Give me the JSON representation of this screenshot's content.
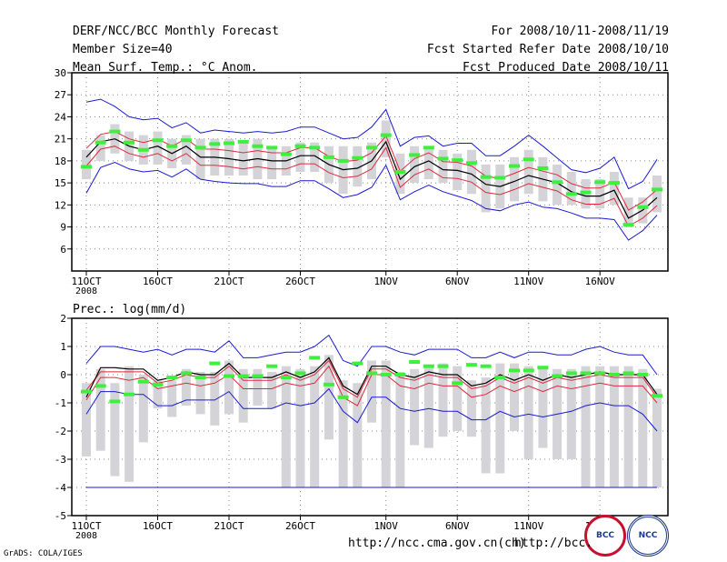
{
  "header": {
    "left": [
      "DERF/NCC/BCC Monthly Forecast",
      "Member Size=40",
      "Mean Surf. Temp.: °C Anom."
    ],
    "right": [
      "For 2008/10/11-2008/11/19",
      "Fcst Started Refer Date 2008/10/10",
      "Fcst Produced Date 2008/10/11"
    ]
  },
  "footer": {
    "grads": "GrADS: COLA/IGES",
    "url1": "http://ncc.cma.gov.cn(ch)",
    "url2": "http://bcc.",
    "logo_bcc": "BCC",
    "logo_ncc": "NCC"
  },
  "colors": {
    "mean": "#000000",
    "inner": "#e0283c",
    "outer": "#1a1ad6",
    "box": "#d4d4d8",
    "median": "#3cf03c",
    "grid": "#888888"
  },
  "chart_data": [
    {
      "type": "line",
      "title": "Mean Surf. Temp.: °C Anom.",
      "ylim": [
        3,
        30
      ],
      "yticks": [
        6,
        9,
        12,
        15,
        18,
        21,
        24,
        27,
        30
      ],
      "xticks": [
        {
          "day": 0,
          "label": "11OCT",
          "sub": "2008"
        },
        {
          "day": 5,
          "label": "16OCT"
        },
        {
          "day": 10,
          "label": "21OCT"
        },
        {
          "day": 15,
          "label": "26OCT"
        },
        {
          "day": 21,
          "label": "1NOV"
        },
        {
          "day": 26,
          "label": "6NOV"
        },
        {
          "day": 31,
          "label": "11NOV"
        },
        {
          "day": 36,
          "label": "16NOV"
        }
      ],
      "series": [
        {
          "name": "mean",
          "values": [
            18.5,
            20.6,
            21.0,
            20.0,
            19.5,
            20.0,
            19.0,
            20.0,
            18.5,
            18.5,
            18.3,
            18.0,
            18.3,
            18.0,
            18.0,
            18.7,
            18.7,
            17.5,
            16.8,
            17.0,
            18.0,
            20.6,
            15.5,
            17.2,
            18.0,
            16.8,
            16.7,
            16.2,
            14.8,
            14.5,
            15.2,
            16.0,
            15.5,
            15.0,
            13.8,
            13.2,
            13.2,
            14.0,
            10.2,
            11.3,
            13.0
          ]
        },
        {
          "name": "inner_upper",
          "values": [
            19.7,
            21.6,
            22.0,
            21.0,
            20.5,
            21.0,
            20.0,
            21.0,
            19.6,
            19.6,
            19.4,
            19.1,
            19.4,
            19.1,
            19.1,
            19.8,
            19.8,
            18.6,
            17.9,
            18.1,
            19.1,
            21.4,
            16.6,
            18.3,
            19.1,
            17.9,
            17.8,
            17.3,
            15.9,
            15.6,
            16.3,
            17.1,
            16.6,
            16.1,
            14.9,
            14.3,
            14.3,
            15.1,
            11.3,
            12.4,
            14.1
          ]
        },
        {
          "name": "inner_lower",
          "values": [
            17.3,
            19.6,
            20.0,
            19.0,
            18.5,
            19.0,
            18.0,
            19.0,
            17.4,
            17.4,
            17.2,
            16.9,
            17.2,
            16.9,
            16.9,
            17.6,
            17.6,
            16.4,
            15.7,
            15.9,
            16.9,
            19.8,
            14.4,
            16.1,
            16.9,
            15.7,
            15.6,
            15.1,
            13.7,
            13.4,
            14.1,
            14.9,
            14.4,
            13.9,
            12.7,
            12.1,
            12.1,
            12.9,
            9.1,
            10.2,
            11.9
          ]
        },
        {
          "name": "outer_upper",
          "values": [
            26.0,
            26.4,
            25.4,
            24.0,
            23.6,
            23.8,
            22.5,
            23.2,
            21.8,
            22.2,
            22.0,
            21.8,
            22.0,
            21.8,
            22.0,
            22.6,
            22.6,
            21.8,
            21.0,
            21.2,
            22.6,
            25.0,
            20.0,
            21.2,
            21.4,
            20.0,
            20.4,
            20.4,
            18.7,
            18.7,
            20.0,
            21.5,
            20.0,
            18.4,
            16.8,
            16.4,
            17.0,
            18.5,
            14.2,
            15.2,
            18.2
          ]
        },
        {
          "name": "outer_lower",
          "values": [
            13.6,
            17.1,
            17.8,
            16.9,
            16.5,
            16.7,
            15.8,
            16.9,
            15.5,
            15.2,
            15.0,
            14.9,
            14.9,
            14.5,
            14.5,
            15.3,
            15.3,
            14.2,
            13.0,
            13.4,
            14.4,
            17.4,
            12.7,
            13.8,
            14.7,
            13.8,
            13.2,
            12.6,
            11.5,
            11.2,
            12.0,
            12.4,
            11.7,
            11.5,
            10.9,
            10.2,
            10.2,
            10.0,
            7.2,
            8.5,
            10.6
          ]
        },
        {
          "name": "box_top",
          "values": [
            19.5,
            21.5,
            23.0,
            22.0,
            21.5,
            22.0,
            21.0,
            21.5,
            21.0,
            21.0,
            21.0,
            20.5,
            21.0,
            20.0,
            20.0,
            20.5,
            20.5,
            20.0,
            20.0,
            20.0,
            20.5,
            23.5,
            19.0,
            20.0,
            20.0,
            19.5,
            19.0,
            19.5,
            17.5,
            17.5,
            18.5,
            19.5,
            18.5,
            17.5,
            16.5,
            15.5,
            15.5,
            16.5,
            13.0,
            13.0,
            16.0
          ]
        },
        {
          "name": "box_bottom",
          "values": [
            15.5,
            18.0,
            19.0,
            18.0,
            17.5,
            17.5,
            17.0,
            17.5,
            15.5,
            16.0,
            16.0,
            16.0,
            15.5,
            15.5,
            16.0,
            16.5,
            16.5,
            15.0,
            13.5,
            14.5,
            15.5,
            18.5,
            13.5,
            15.0,
            15.5,
            15.0,
            14.0,
            13.5,
            11.0,
            11.5,
            12.5,
            13.5,
            12.5,
            12.0,
            12.0,
            11.5,
            11.5,
            12.0,
            9.0,
            9.5,
            11.0
          ]
        },
        {
          "name": "median",
          "values": [
            17.2,
            20.5,
            22.0,
            20.5,
            19.5,
            20.8,
            20.0,
            20.8,
            19.8,
            20.3,
            20.4,
            20.6,
            20.0,
            19.8,
            18.9,
            20.0,
            19.8,
            18.5,
            18.0,
            18.4,
            19.8,
            21.5,
            16.5,
            18.8,
            19.8,
            18.3,
            18.1,
            17.7,
            15.8,
            15.7,
            17.3,
            18.2,
            17.0,
            15.1,
            13.5,
            13.7,
            15.1,
            15.0,
            9.3,
            11.7,
            14.1
          ]
        }
      ]
    },
    {
      "type": "line",
      "title": "Prec.: log(mm/d)",
      "ylim": [
        -5,
        2
      ],
      "yticks": [
        -5,
        -4,
        -3,
        -2,
        -1,
        0,
        1,
        2
      ],
      "xticks": [
        {
          "day": 0,
          "label": "11OCT",
          "sub": "2008"
        },
        {
          "day": 5,
          "label": "16OCT"
        },
        {
          "day": 10,
          "label": "21OCT"
        },
        {
          "day": 15,
          "label": "26OCT"
        },
        {
          "day": 21,
          "label": "1NOV"
        },
        {
          "day": 26,
          "label": "6NOV"
        },
        {
          "day": 31,
          "label": "11NOV"
        },
        {
          "day": 36,
          "label": "16NOV"
        }
      ],
      "series": [
        {
          "name": "mean",
          "values": [
            -0.8,
            0.25,
            0.25,
            0.2,
            0.2,
            -0.2,
            -0.1,
            0.1,
            0.0,
            0.0,
            0.4,
            -0.1,
            -0.1,
            -0.1,
            0.1,
            -0.1,
            0.1,
            0.6,
            -0.4,
            -0.7,
            0.3,
            0.3,
            0.0,
            -0.1,
            0.1,
            0.0,
            0.0,
            -0.4,
            -0.3,
            0.0,
            -0.2,
            0.0,
            -0.2,
            0.0,
            -0.1,
            0.0,
            0.1,
            0.0,
            0.0,
            0.0,
            -0.7
          ]
        },
        {
          "name": "inner_upper",
          "values": [
            -0.55,
            0.1,
            0.1,
            0.1,
            0.1,
            -0.3,
            -0.2,
            0.0,
            -0.1,
            -0.1,
            0.3,
            -0.2,
            -0.2,
            -0.2,
            0.0,
            -0.2,
            0.0,
            0.5,
            -0.5,
            -0.8,
            0.2,
            0.2,
            -0.1,
            -0.2,
            0.0,
            -0.1,
            -0.1,
            -0.5,
            -0.4,
            -0.1,
            -0.3,
            -0.1,
            -0.3,
            -0.1,
            -0.2,
            -0.1,
            0.0,
            -0.1,
            -0.1,
            -0.1,
            -0.8
          ]
        },
        {
          "name": "inner_lower",
          "values": [
            -0.9,
            -0.1,
            -0.1,
            -0.2,
            -0.1,
            -0.5,
            -0.4,
            -0.3,
            -0.4,
            -0.3,
            0.0,
            -0.5,
            -0.5,
            -0.5,
            -0.3,
            -0.4,
            -0.3,
            0.3,
            -0.8,
            -1.1,
            0.0,
            0.0,
            -0.4,
            -0.5,
            -0.3,
            -0.4,
            -0.4,
            -0.8,
            -0.7,
            -0.4,
            -0.6,
            -0.4,
            -0.6,
            -0.4,
            -0.5,
            -0.4,
            -0.3,
            -0.4,
            -0.4,
            -0.4,
            -1.0
          ]
        },
        {
          "name": "outer_upper",
          "values": [
            0.4,
            1.0,
            1.0,
            0.9,
            0.8,
            0.9,
            0.7,
            0.9,
            0.9,
            0.8,
            1.2,
            0.6,
            0.6,
            0.7,
            0.8,
            0.8,
            1.0,
            1.4,
            0.5,
            0.3,
            1.0,
            1.0,
            0.8,
            0.7,
            0.9,
            0.9,
            0.9,
            0.6,
            0.6,
            0.8,
            0.6,
            0.8,
            0.8,
            0.7,
            0.7,
            0.9,
            1.0,
            0.8,
            0.7,
            0.7,
            0.0
          ]
        },
        {
          "name": "outer_lower",
          "values": [
            -1.4,
            -0.6,
            -0.6,
            -0.7,
            -0.7,
            -1.1,
            -1.1,
            -0.9,
            -0.9,
            -0.9,
            -0.6,
            -1.2,
            -1.2,
            -1.2,
            -1.0,
            -1.1,
            -1.0,
            -0.5,
            -1.3,
            -1.7,
            -0.8,
            -0.8,
            -1.2,
            -1.3,
            -1.2,
            -1.3,
            -1.3,
            -1.6,
            -1.6,
            -1.3,
            -1.5,
            -1.4,
            -1.5,
            -1.4,
            -1.3,
            -1.1,
            -1.0,
            -1.1,
            -1.1,
            -1.4,
            -2.0
          ]
        },
        {
          "name": "floor",
          "values": [
            -4,
            -4,
            -4,
            -4,
            -4,
            -4,
            -4,
            -4,
            -4,
            -4,
            -4,
            -4,
            -4,
            -4,
            -4,
            -4,
            -4,
            -4,
            -4,
            -4,
            -4,
            -4,
            -4,
            -4,
            -4,
            -4,
            -4,
            -4,
            -4,
            -4,
            -4,
            -4,
            -4,
            -4,
            -4,
            -4,
            -4,
            -4,
            -4,
            -4,
            -4
          ]
        },
        {
          "name": "box_top",
          "values": [
            -0.3,
            0.2,
            -0.3,
            0.3,
            0.0,
            -0.2,
            -0.2,
            0.2,
            0.1,
            0.1,
            0.5,
            0.2,
            0.2,
            0.1,
            0.3,
            0.2,
            0.3,
            0.7,
            -0.2,
            -0.3,
            0.5,
            0.5,
            0.1,
            0.2,
            0.3,
            0.4,
            0.3,
            -0.2,
            -0.1,
            0.4,
            0.4,
            0.3,
            0.3,
            0.2,
            0.2,
            0.3,
            0.3,
            0.3,
            0.3,
            0.2,
            -0.5
          ]
        },
        {
          "name": "box_bottom",
          "values": [
            -2.9,
            -2.7,
            -3.6,
            -3.8,
            -2.4,
            -1.2,
            -1.5,
            -1.1,
            -1.4,
            -1.8,
            -1.4,
            -1.7,
            -1.1,
            -1.2,
            -4.0,
            -4.0,
            -4.0,
            -2.3,
            -4.0,
            -4.0,
            -1.7,
            -4.0,
            -4.0,
            -2.5,
            -2.6,
            -2.2,
            -2.0,
            -2.2,
            -3.5,
            -3.5,
            -2.0,
            -3.0,
            -2.6,
            -3.0,
            -3.0,
            -4.0,
            -4.0,
            -4.0,
            -4.0,
            -4.0,
            -4.0
          ]
        },
        {
          "name": "median",
          "values": [
            -0.6,
            -0.4,
            -0.95,
            -0.7,
            -0.25,
            -0.35,
            -0.1,
            0.05,
            -0.1,
            0.4,
            -0.05,
            -0.05,
            -0.05,
            0.3,
            -0.1,
            0.05,
            0.6,
            -0.35,
            -0.8,
            0.4,
            0.05,
            0.0,
            0.0,
            0.45,
            0.3,
            0.3,
            -0.3,
            0.35,
            0.3,
            -0.1,
            0.15,
            0.15,
            0.25,
            -0.05,
            0.05,
            0.05,
            0.05,
            0.0,
            0.05,
            0.0,
            -0.75
          ]
        }
      ]
    }
  ]
}
